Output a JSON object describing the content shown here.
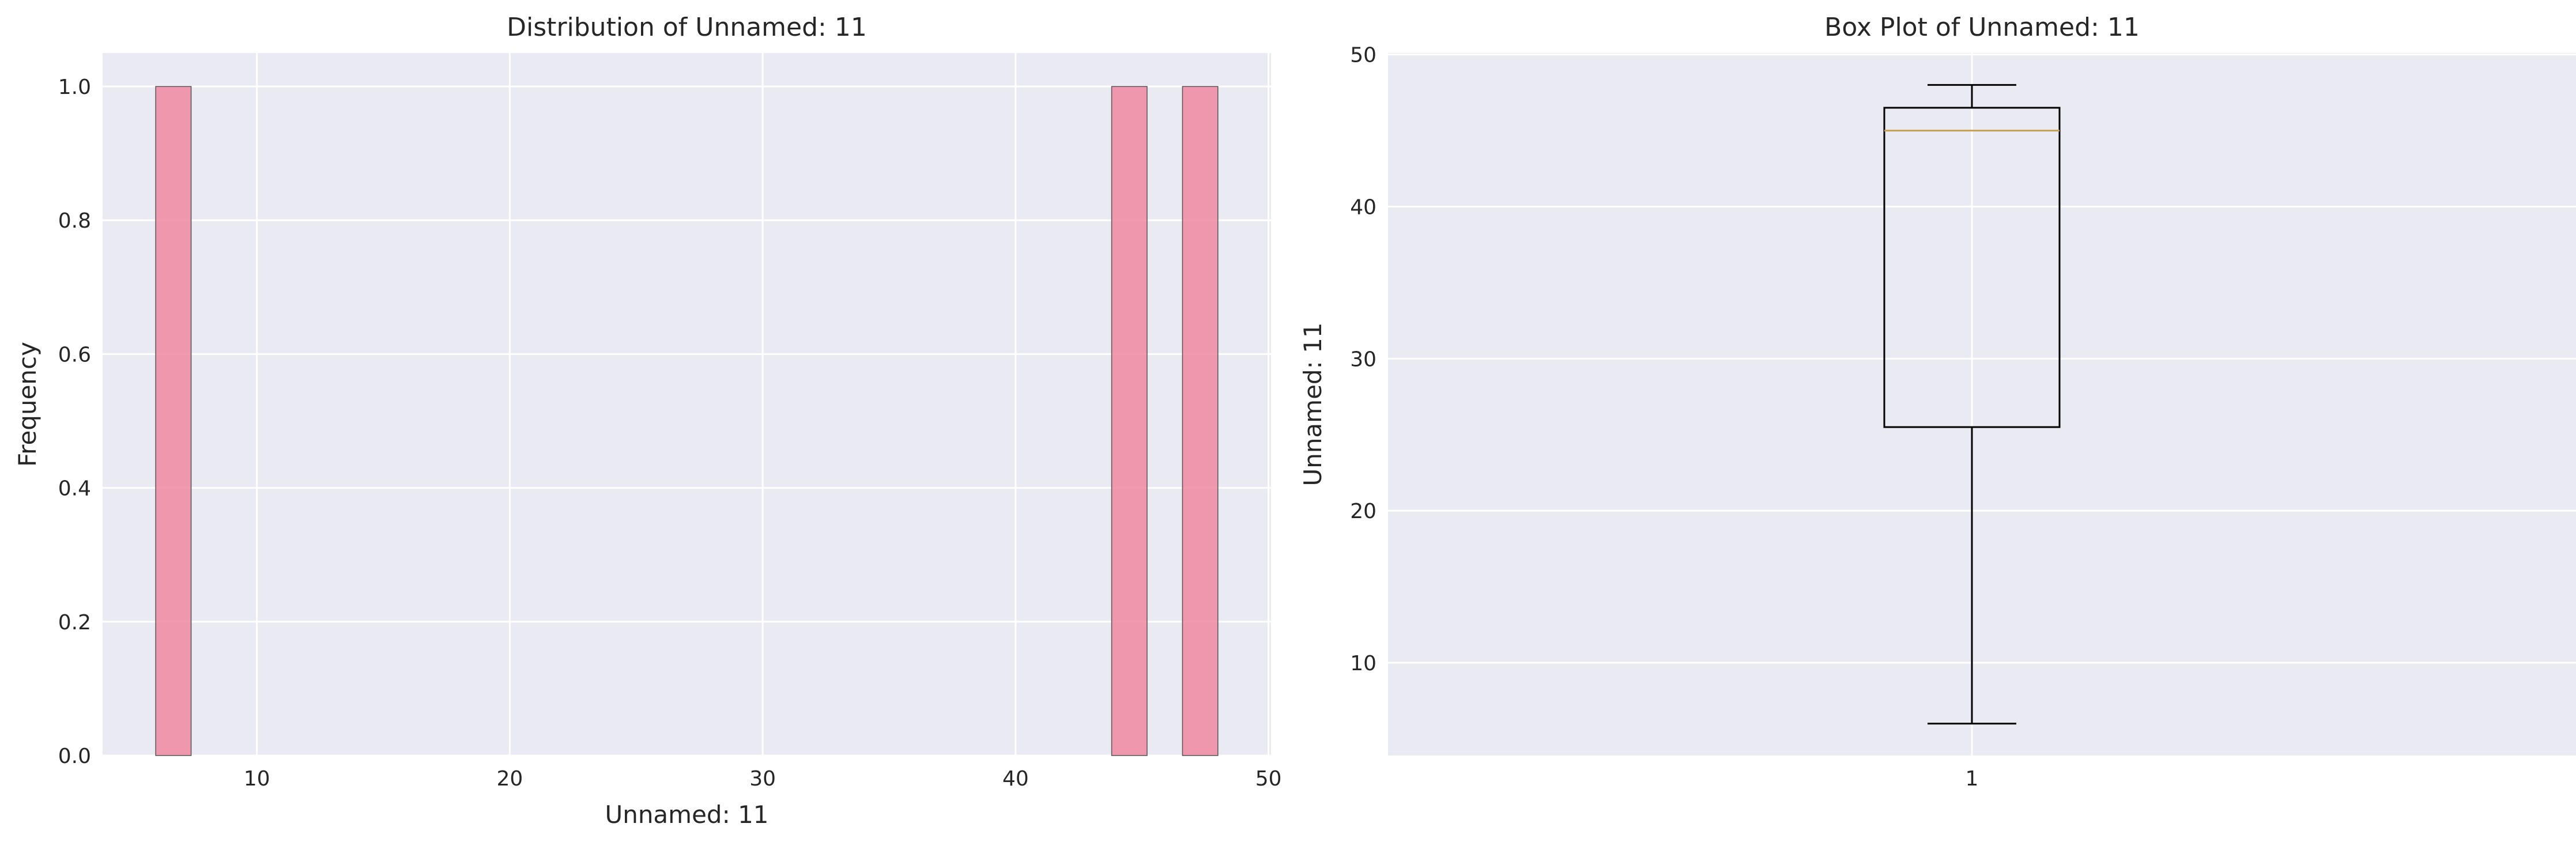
{
  "chart_data": [
    {
      "type": "bar",
      "subtype": "histogram",
      "title": "Distribution of Unnamed: 11",
      "xlabel": "Unnamed: 11",
      "ylabel": "Frequency",
      "xlim": [
        3.9,
        50.1
      ],
      "ylim": [
        0,
        1.05
      ],
      "xticks": [
        10,
        20,
        30,
        40,
        50
      ],
      "yticks": [
        0.0,
        0.2,
        0.4,
        0.6,
        0.8,
        1.0
      ],
      "ytick_labels": [
        "0.0",
        "0.2",
        "0.4",
        "0.6",
        "0.8",
        "1.0"
      ],
      "bins": [
        {
          "x0": 6.0,
          "x1": 7.4,
          "count": 1
        },
        {
          "x0": 43.8,
          "x1": 45.2,
          "count": 1
        },
        {
          "x0": 46.6,
          "x1": 48.0,
          "count": 1
        }
      ],
      "bar_color": "#f0829a",
      "grid": true
    },
    {
      "type": "box",
      "title": "Box Plot of Unnamed: 11",
      "xlabel": "",
      "ylabel": "Unnamed: 11",
      "categories": [
        "1"
      ],
      "ylim": [
        3.9,
        50.1
      ],
      "yticks": [
        10,
        20,
        30,
        40,
        50
      ],
      "box": {
        "whisker_low": 6,
        "q1": 25.5,
        "median": 45,
        "q3": 46.5,
        "whisker_high": 48
      },
      "median_color": "#c8a050",
      "grid": true
    }
  ],
  "style": {
    "background": "#eaeaf2",
    "grid_color": "#ffffff"
  }
}
